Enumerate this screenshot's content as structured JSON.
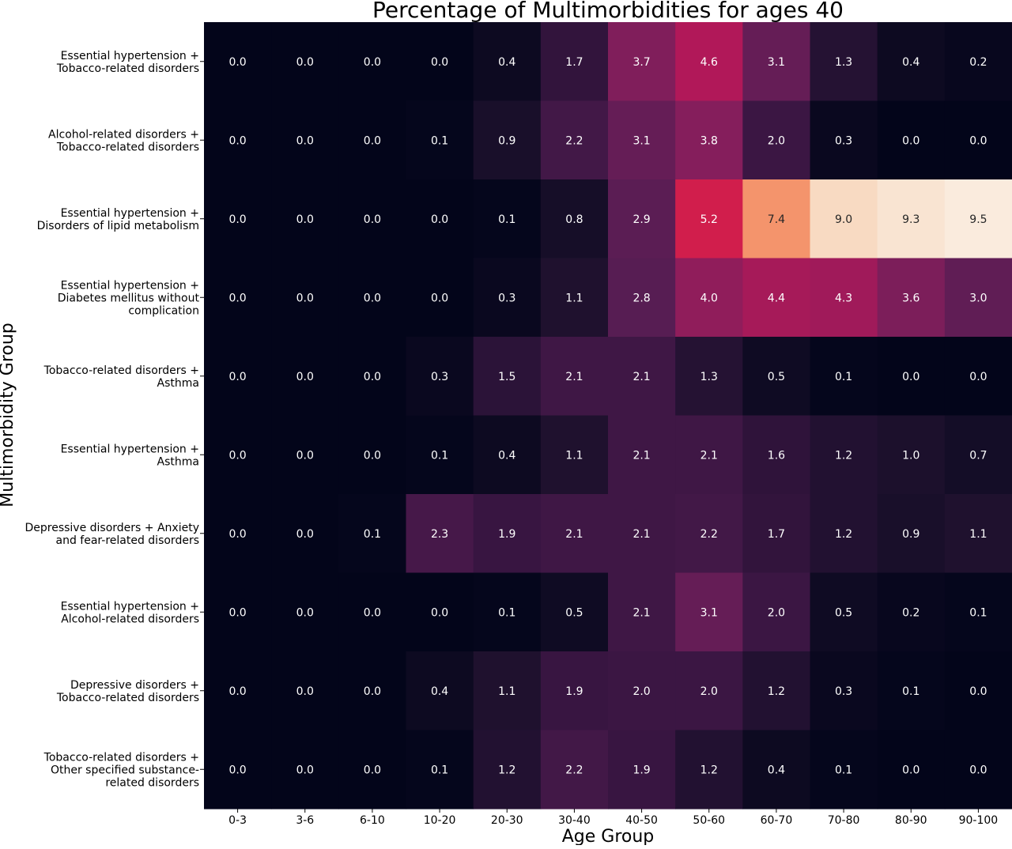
{
  "chart_data": {
    "type": "heatmap",
    "title": "Percentage of Multimorbidities for ages 40",
    "xlabel": "Age Group",
    "ylabel": "Multimorbidity  Group",
    "x_categories": [
      "0-3",
      "3-6",
      "6-10",
      "10-20",
      "20-30",
      "30-40",
      "40-50",
      "50-60",
      "60-70",
      "70-80",
      "80-90",
      "90-100"
    ],
    "y_categories": [
      [
        "Essential hypertension +",
        "Tobacco-related disorders"
      ],
      [
        "Alcohol-related disorders +",
        "Tobacco-related disorders"
      ],
      [
        "Essential hypertension +",
        "Disorders of lipid metabolism"
      ],
      [
        "Essential hypertension +",
        "Diabetes mellitus without",
        "complication"
      ],
      [
        "Tobacco-related disorders +",
        "Asthma"
      ],
      [
        "Essential hypertension +",
        "Asthma"
      ],
      [
        "Depressive disorders + Anxiety",
        "and fear-related disorders"
      ],
      [
        "Essential hypertension +",
        "Alcohol-related disorders"
      ],
      [
        "Depressive disorders +",
        "Tobacco-related disorders"
      ],
      [
        "Tobacco-related disorders +",
        "Other specified substance-",
        "related disorders"
      ]
    ],
    "values": [
      [
        0.0,
        0.0,
        0.0,
        0.0,
        0.4,
        1.7,
        3.7,
        4.6,
        3.1,
        1.3,
        0.4,
        0.2
      ],
      [
        0.0,
        0.0,
        0.0,
        0.1,
        0.9,
        2.2,
        3.1,
        3.8,
        2.0,
        0.3,
        0.0,
        0.0
      ],
      [
        0.0,
        0.0,
        0.0,
        0.0,
        0.1,
        0.8,
        2.9,
        5.2,
        7.4,
        9.0,
        9.3,
        9.5
      ],
      [
        0.0,
        0.0,
        0.0,
        0.0,
        0.3,
        1.1,
        2.8,
        4.0,
        4.4,
        4.3,
        3.6,
        3.0
      ],
      [
        0.0,
        0.0,
        0.0,
        0.3,
        1.5,
        2.1,
        2.1,
        1.3,
        0.5,
        0.1,
        0.0,
        0.0
      ],
      [
        0.0,
        0.0,
        0.0,
        0.1,
        0.4,
        1.1,
        2.1,
        2.1,
        1.6,
        1.2,
        1.0,
        0.7
      ],
      [
        0.0,
        0.0,
        0.1,
        2.3,
        1.9,
        2.1,
        2.1,
        2.2,
        1.7,
        1.2,
        0.9,
        1.1
      ],
      [
        0.0,
        0.0,
        0.0,
        0.0,
        0.1,
        0.5,
        2.1,
        3.1,
        2.0,
        0.5,
        0.2,
        0.1
      ],
      [
        0.0,
        0.0,
        0.0,
        0.4,
        1.1,
        1.9,
        2.0,
        2.0,
        1.2,
        0.3,
        0.1,
        0.0
      ],
      [
        0.0,
        0.0,
        0.0,
        0.1,
        1.2,
        2.2,
        1.9,
        1.2,
        0.4,
        0.1,
        0.0,
        0.0
      ]
    ],
    "value_range": [
      0.0,
      9.5
    ],
    "colormap": "rocket",
    "annotations_shown": true,
    "legend": "none",
    "grid": false
  }
}
